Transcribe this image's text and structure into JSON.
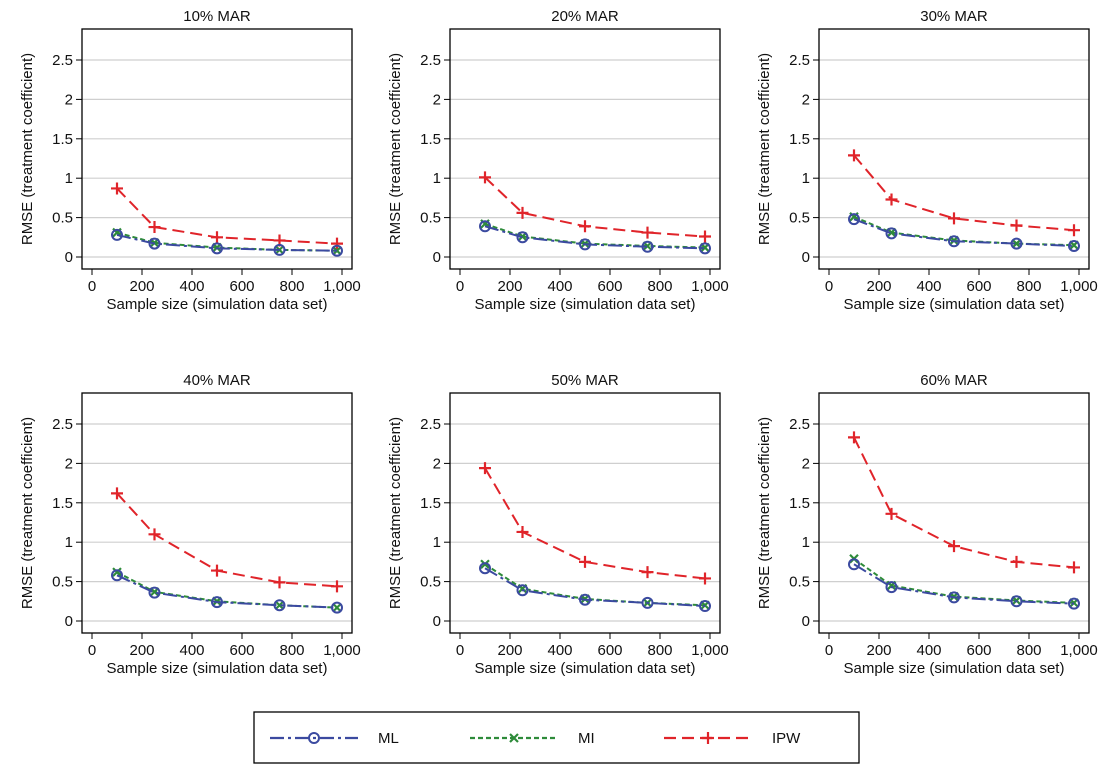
{
  "chart_data": [
    {
      "type": "line",
      "title": "10% MAR",
      "xlabel": "Sample size (simulation data set)",
      "ylabel": "RMSE (treatment coefficient)",
      "xlim": [
        0,
        1000
      ],
      "ylim": [
        0,
        2.5
      ],
      "xticks": [
        0,
        200,
        400,
        600,
        800,
        1000
      ],
      "xtick_labels": [
        "0",
        "200",
        "400",
        "600",
        "800",
        "1,000"
      ],
      "yticks": [
        0,
        0.5,
        1,
        1.5,
        2,
        2.5
      ],
      "ytick_labels": [
        "0",
        "0.5",
        "1",
        "1.5",
        "2",
        "2.5"
      ],
      "grid": true,
      "x": [
        100,
        250,
        500,
        750,
        980
      ],
      "series": [
        {
          "name": "ML",
          "values": [
            0.28,
            0.17,
            0.11,
            0.09,
            0.08
          ]
        },
        {
          "name": "MI",
          "values": [
            0.31,
            0.18,
            0.12,
            0.09,
            0.08
          ]
        },
        {
          "name": "IPW",
          "values": [
            0.87,
            0.38,
            0.25,
            0.21,
            0.17
          ]
        }
      ]
    },
    {
      "type": "line",
      "title": "20% MAR",
      "xlabel": "Sample size (simulation data set)",
      "ylabel": "RMSE (treatment coefficient)",
      "xlim": [
        0,
        1000
      ],
      "ylim": [
        0,
        2.5
      ],
      "xticks": [
        0,
        200,
        400,
        600,
        800,
        1000
      ],
      "xtick_labels": [
        "0",
        "200",
        "400",
        "600",
        "800",
        "1,000"
      ],
      "yticks": [
        0,
        0.5,
        1,
        1.5,
        2,
        2.5
      ],
      "ytick_labels": [
        "0",
        "0.5",
        "1",
        "1.5",
        "2",
        "2.5"
      ],
      "grid": true,
      "x": [
        100,
        250,
        500,
        750,
        980
      ],
      "series": [
        {
          "name": "ML",
          "values": [
            0.39,
            0.25,
            0.16,
            0.13,
            0.11
          ]
        },
        {
          "name": "MI",
          "values": [
            0.42,
            0.26,
            0.17,
            0.14,
            0.12
          ]
        },
        {
          "name": "IPW",
          "values": [
            1.01,
            0.56,
            0.39,
            0.31,
            0.26
          ]
        }
      ]
    },
    {
      "type": "line",
      "title": "30% MAR",
      "xlabel": "Sample size (simulation data set)",
      "ylabel": "RMSE (treatment coefficient)",
      "xlim": [
        0,
        1000
      ],
      "ylim": [
        0,
        2.5
      ],
      "xticks": [
        0,
        200,
        400,
        600,
        800,
        1000
      ],
      "xtick_labels": [
        "0",
        "200",
        "400",
        "600",
        "800",
        "1,000"
      ],
      "yticks": [
        0,
        0.5,
        1,
        1.5,
        2,
        2.5
      ],
      "ytick_labels": [
        "0",
        "0.5",
        "1",
        "1.5",
        "2",
        "2.5"
      ],
      "grid": true,
      "x": [
        100,
        250,
        500,
        750,
        980
      ],
      "series": [
        {
          "name": "ML",
          "values": [
            0.48,
            0.3,
            0.2,
            0.17,
            0.14
          ]
        },
        {
          "name": "MI",
          "values": [
            0.51,
            0.31,
            0.21,
            0.17,
            0.15
          ]
        },
        {
          "name": "IPW",
          "values": [
            1.29,
            0.73,
            0.49,
            0.4,
            0.34
          ]
        }
      ]
    },
    {
      "type": "line",
      "title": "40% MAR",
      "xlabel": "Sample size (simulation data set)",
      "ylabel": "RMSE (treatment coefficient)",
      "xlim": [
        0,
        1000
      ],
      "ylim": [
        0,
        2.5
      ],
      "xticks": [
        0,
        200,
        400,
        600,
        800,
        1000
      ],
      "xtick_labels": [
        "0",
        "200",
        "400",
        "600",
        "800",
        "1,000"
      ],
      "yticks": [
        0,
        0.5,
        1,
        1.5,
        2,
        2.5
      ],
      "ytick_labels": [
        "0",
        "0.5",
        "1",
        "1.5",
        "2",
        "2.5"
      ],
      "grid": true,
      "x": [
        100,
        250,
        500,
        750,
        980
      ],
      "series": [
        {
          "name": "ML",
          "values": [
            0.58,
            0.36,
            0.24,
            0.2,
            0.17
          ]
        },
        {
          "name": "MI",
          "values": [
            0.62,
            0.37,
            0.25,
            0.2,
            0.17
          ]
        },
        {
          "name": "IPW",
          "values": [
            1.62,
            1.1,
            0.64,
            0.49,
            0.44
          ]
        }
      ]
    },
    {
      "type": "line",
      "title": "50% MAR",
      "xlabel": "Sample size (simulation data set)",
      "ylabel": "RMSE (treatment coefficient)",
      "xlim": [
        0,
        1000
      ],
      "ylim": [
        0,
        2.5
      ],
      "xticks": [
        0,
        200,
        400,
        600,
        800,
        1000
      ],
      "xtick_labels": [
        "0",
        "200",
        "400",
        "600",
        "800",
        "1,000"
      ],
      "yticks": [
        0,
        0.5,
        1,
        1.5,
        2,
        2.5
      ],
      "ytick_labels": [
        "0",
        "0.5",
        "1",
        "1.5",
        "2",
        "2.5"
      ],
      "grid": true,
      "x": [
        100,
        250,
        500,
        750,
        980
      ],
      "series": [
        {
          "name": "ML",
          "values": [
            0.67,
            0.39,
            0.27,
            0.23,
            0.19
          ]
        },
        {
          "name": "MI",
          "values": [
            0.72,
            0.41,
            0.28,
            0.23,
            0.2
          ]
        },
        {
          "name": "IPW",
          "values": [
            1.94,
            1.13,
            0.75,
            0.62,
            0.54
          ]
        }
      ]
    },
    {
      "type": "line",
      "title": "60% MAR",
      "xlabel": "Sample size (simulation data set)",
      "ylabel": "RMSE (treatment coefficient)",
      "xlim": [
        0,
        1000
      ],
      "ylim": [
        0,
        2.5
      ],
      "xticks": [
        0,
        200,
        400,
        600,
        800,
        1000
      ],
      "xtick_labels": [
        "0",
        "200",
        "400",
        "600",
        "800",
        "1,000"
      ],
      "yticks": [
        0,
        0.5,
        1,
        1.5,
        2,
        2.5
      ],
      "ytick_labels": [
        "0",
        "0.5",
        "1",
        "1.5",
        "2",
        "2.5"
      ],
      "grid": true,
      "x": [
        100,
        250,
        500,
        750,
        980
      ],
      "series": [
        {
          "name": "ML",
          "values": [
            0.72,
            0.43,
            0.3,
            0.25,
            0.22
          ]
        },
        {
          "name": "MI",
          "values": [
            0.79,
            0.45,
            0.31,
            0.26,
            0.23
          ]
        },
        {
          "name": "IPW",
          "values": [
            2.33,
            1.36,
            0.95,
            0.75,
            0.68
          ]
        }
      ]
    }
  ],
  "legend": {
    "placement": "bottom",
    "items": [
      {
        "label": "ML",
        "color": "#3b4aa0",
        "marker": "circle-marker",
        "dash": "long-dash-dot"
      },
      {
        "label": "MI",
        "color": "#2e8b3a",
        "marker": "x-marker",
        "dash": "short-dash"
      },
      {
        "label": "IPW",
        "color": "#e0242a",
        "marker": "plus-marker",
        "dash": "long-dash"
      }
    ]
  }
}
